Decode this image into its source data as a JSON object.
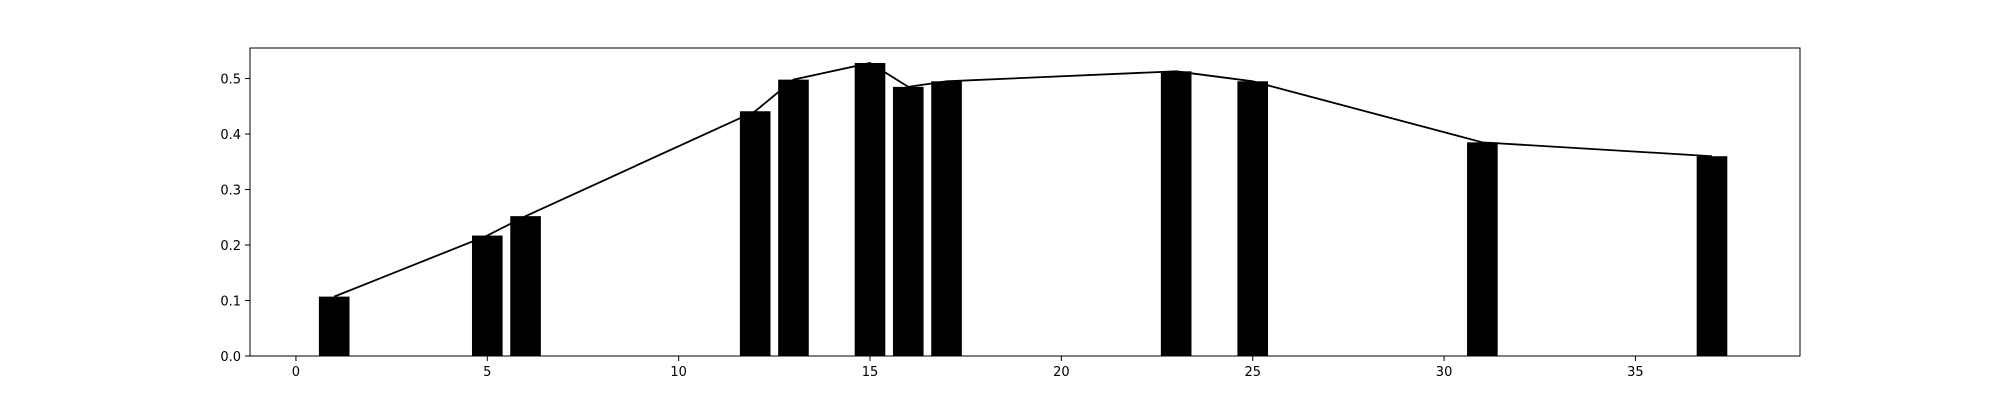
{
  "chart_data": {
    "type": "bar",
    "title": "",
    "xlabel": "",
    "ylabel": "",
    "xlim": [
      -1.2,
      39.3
    ],
    "ylim": [
      0,
      0.555
    ],
    "grid": false,
    "bar_width": 0.8,
    "x": [
      1,
      5,
      6,
      12,
      13,
      15,
      16,
      17,
      23,
      25,
      31,
      37
    ],
    "values": [
      0.107,
      0.217,
      0.252,
      0.441,
      0.498,
      0.528,
      0.485,
      0.495,
      0.513,
      0.495,
      0.385,
      0.36
    ],
    "line_overlay": true,
    "xticks": [
      0,
      5,
      10,
      15,
      20,
      25,
      30,
      35
    ],
    "xtick_labels": [
      "0",
      "5",
      "10",
      "15",
      "20",
      "25",
      "30",
      "35"
    ],
    "yticks": [
      0.0,
      0.1,
      0.2,
      0.3,
      0.4,
      0.5
    ],
    "ytick_labels": [
      "0.0",
      "0.1",
      "0.2",
      "0.3",
      "0.4",
      "0.5"
    ],
    "colors": {
      "bar": "#000000",
      "line": "#000000",
      "axes": "#000000",
      "background": "#ffffff"
    }
  }
}
